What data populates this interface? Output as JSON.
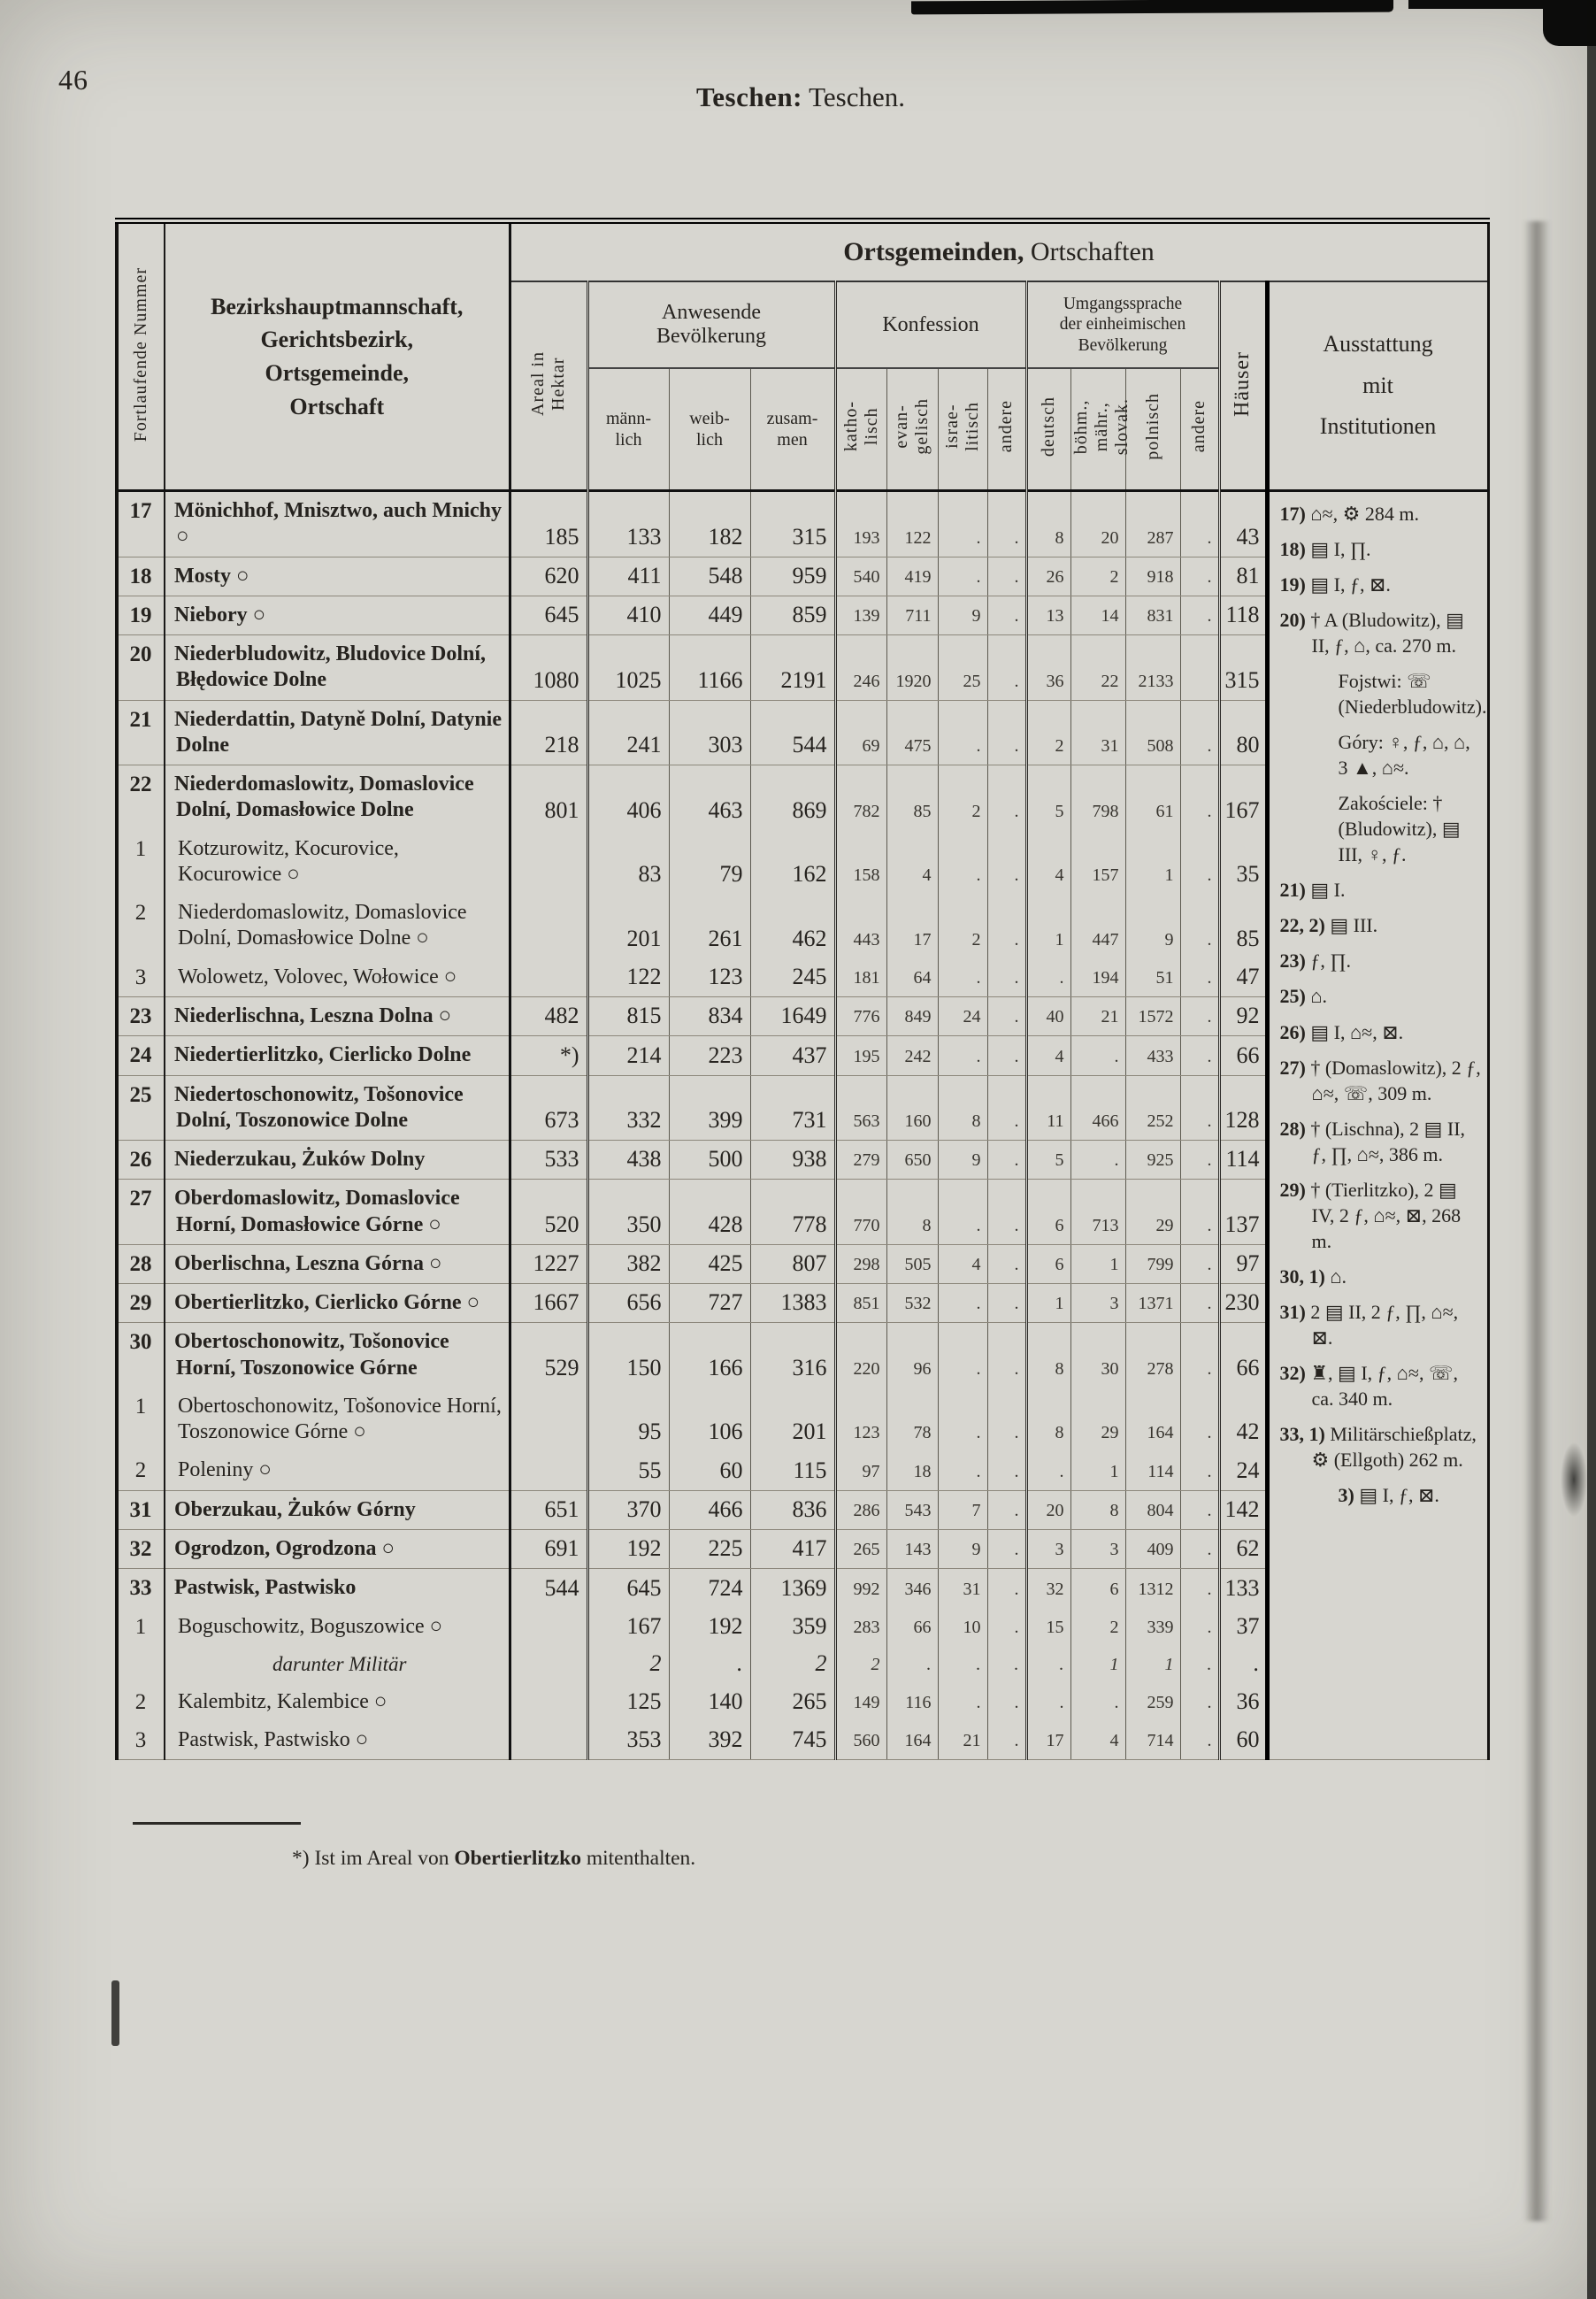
{
  "page": {
    "number": "46",
    "running_title_bold": "Teschen:",
    "running_title_rest": " Teschen.",
    "footnote_pre": "*) Ist im Areal von ",
    "footnote_bold": "Obertierlitzko",
    "footnote_post": " mitenthalten."
  },
  "header": {
    "nr_label": "Fortlaufende Nummer",
    "left_lines": "Bezirkshauptmannschaft,\nGerichtsbezirk,\nOrtsgemeinde,\nOrtschaft",
    "banner_bold": "Ortsgemeinden,",
    "banner_rest": " Ortschaften",
    "areal_label": "Areal in\nHektar",
    "pop_group": "Anwesende\nBevölkerung",
    "pop_cols": [
      "männ-\nlich",
      "weib-\nlich",
      "zusam-\nmen"
    ],
    "konf_group": "Konfession",
    "konf_cols": [
      "katho-\nlisch",
      "evan-\ngelisch",
      "israe-\nlitisch",
      "andere"
    ],
    "lang_group": "Umgangssprache\nder einheimischen\nBevölkerung",
    "lang_cols": [
      "deutsch",
      "böhm.,\nmähr.,\nslovak.",
      "polnisch",
      "andere"
    ],
    "haeuser_label": "Häuser",
    "ausstattung_label": "Ausstattung\nmit\nInstitutionen"
  },
  "rows": [
    {
      "nr": "17",
      "cls": "main",
      "name": "Mönichhof, Mnisztwo, auch Mnichy ○",
      "v": [
        "185",
        "133",
        "182",
        "315",
        "193",
        "122",
        ".",
        ".",
        "8",
        "20",
        "287",
        ".",
        "43"
      ],
      "end": true
    },
    {
      "nr": "18",
      "cls": "main",
      "name": "Mosty ○",
      "v": [
        "620",
        "411",
        "548",
        "959",
        "540",
        "419",
        ".",
        ".",
        "26",
        "2",
        "918",
        ".",
        "81"
      ],
      "end": true
    },
    {
      "nr": "19",
      "cls": "main",
      "name": "Niebory ○",
      "v": [
        "645",
        "410",
        "449",
        "859",
        "139",
        "711",
        "9",
        ".",
        "13",
        "14",
        "831",
        ".",
        "118"
      ],
      "end": true
    },
    {
      "nr": "20",
      "cls": "main",
      "name": "Niederbludowitz, Bludovice Dolní, Błędowice Dolne",
      "v": [
        "1080",
        "1025",
        "1166",
        "2191",
        "246",
        "1920",
        "25",
        ".",
        "36",
        "22",
        "2133",
        "",
        "315"
      ],
      "end": true
    },
    {
      "nr": "21",
      "cls": "main",
      "name": "Niederdattin, Datyně Dolní, Datynie Dolne",
      "v": [
        "218",
        "241",
        "303",
        "544",
        "69",
        "475",
        ".",
        ".",
        "2",
        "31",
        "508",
        ".",
        "80"
      ],
      "end": true
    },
    {
      "nr": "22",
      "cls": "main",
      "name": "Niederdomaslowitz, Domaslovice Dolní, Domasłowice Dolne",
      "v": [
        "801",
        "406",
        "463",
        "869",
        "782",
        "85",
        "2",
        ".",
        "5",
        "798",
        "61",
        ".",
        "167"
      ],
      "end": false
    },
    {
      "nr": "1",
      "cls": "sub",
      "name": "Kotzurowitz, Kocurovice, Kocurowice ○",
      "v": [
        "",
        "83",
        "79",
        "162",
        "158",
        "4",
        ".",
        ".",
        "4",
        "157",
        "1",
        ".",
        "35"
      ],
      "end": false
    },
    {
      "nr": "2",
      "cls": "sub",
      "name": "Niederdomaslowitz, Domaslovice Dolní, Domasłowice Dolne ○",
      "v": [
        "",
        "201",
        "261",
        "462",
        "443",
        "17",
        "2",
        ".",
        "1",
        "447",
        "9",
        ".",
        "85"
      ],
      "end": false
    },
    {
      "nr": "3",
      "cls": "sub",
      "name": "Wolowetz, Volovec, Wołowice ○",
      "v": [
        "",
        "122",
        "123",
        "245",
        "181",
        "64",
        ".",
        ".",
        ".",
        "194",
        "51",
        ".",
        "47"
      ],
      "end": true
    },
    {
      "nr": "23",
      "cls": "main",
      "name": "Niederlischna, Leszna Dolna ○",
      "v": [
        "482",
        "815",
        "834",
        "1649",
        "776",
        "849",
        "24",
        ".",
        "40",
        "21",
        "1572",
        ".",
        "92"
      ],
      "end": true
    },
    {
      "nr": "24",
      "cls": "main",
      "name": "Niedertierlitzko, Cierlicko Dolne",
      "v": [
        "*)",
        "214",
        "223",
        "437",
        "195",
        "242",
        ".",
        ".",
        "4",
        ".",
        "433",
        ".",
        "66"
      ],
      "end": true
    },
    {
      "nr": "25",
      "cls": "main",
      "name": "Niedertoschonowitz, Tošonovice Dolní, Toszonowice Dolne",
      "v": [
        "673",
        "332",
        "399",
        "731",
        "563",
        "160",
        "8",
        ".",
        "11",
        "466",
        "252",
        ".",
        "128"
      ],
      "end": true
    },
    {
      "nr": "26",
      "cls": "main",
      "name": "Niederzukau, Żuków Dolny",
      "v": [
        "533",
        "438",
        "500",
        "938",
        "279",
        "650",
        "9",
        ".",
        "5",
        ".",
        "925",
        ".",
        "114"
      ],
      "end": true
    },
    {
      "nr": "27",
      "cls": "main",
      "name": "Oberdomaslowitz, Domaslovice Horní, Domasłowice Górne ○",
      "v": [
        "520",
        "350",
        "428",
        "778",
        "770",
        "8",
        ".",
        ".",
        "6",
        "713",
        "29",
        ".",
        "137"
      ],
      "end": true
    },
    {
      "nr": "28",
      "cls": "main",
      "name": "Oberlischna, Leszna Górna ○",
      "v": [
        "1227",
        "382",
        "425",
        "807",
        "298",
        "505",
        "4",
        ".",
        "6",
        "1",
        "799",
        ".",
        "97"
      ],
      "end": true
    },
    {
      "nr": "29",
      "cls": "main",
      "name": "Obertierlitzko, Cierlicko Górne ○",
      "v": [
        "1667",
        "656",
        "727",
        "1383",
        "851",
        "532",
        ".",
        ".",
        "1",
        "3",
        "1371",
        ".",
        "230"
      ],
      "end": true
    },
    {
      "nr": "30",
      "cls": "main",
      "name": "Obertoschonowitz, Tošonovice Horní, Toszonowice Górne",
      "v": [
        "529",
        "150",
        "166",
        "316",
        "220",
        "96",
        ".",
        ".",
        "8",
        "30",
        "278",
        ".",
        "66"
      ],
      "end": false
    },
    {
      "nr": "1",
      "cls": "sub",
      "name": "Obertoschonowitz, Tošonovice Horní, Toszonowice Górne ○",
      "v": [
        "",
        "95",
        "106",
        "201",
        "123",
        "78",
        ".",
        ".",
        "8",
        "29",
        "164",
        ".",
        "42"
      ],
      "end": false
    },
    {
      "nr": "2",
      "cls": "sub",
      "name": "Poleniny ○",
      "v": [
        "",
        "55",
        "60",
        "115",
        "97",
        "18",
        ".",
        ".",
        ".",
        "1",
        "114",
        ".",
        "24"
      ],
      "end": true
    },
    {
      "nr": "31",
      "cls": "main",
      "name": "Oberzukau, Żuków Górny",
      "v": [
        "651",
        "370",
        "466",
        "836",
        "286",
        "543",
        "7",
        ".",
        "20",
        "8",
        "804",
        ".",
        "142"
      ],
      "end": true
    },
    {
      "nr": "32",
      "cls": "main",
      "name": "Ogrodzon, Ogrodzona ○",
      "v": [
        "691",
        "192",
        "225",
        "417",
        "265",
        "143",
        "9",
        ".",
        "3",
        "3",
        "409",
        ".",
        "62"
      ],
      "end": true
    },
    {
      "nr": "33",
      "cls": "main",
      "name": "Pastwisk, Pastwisko",
      "v": [
        "544",
        "645",
        "724",
        "1369",
        "992",
        "346",
        "31",
        ".",
        "32",
        "6",
        "1312",
        ".",
        "133"
      ],
      "end": false
    },
    {
      "nr": "1",
      "cls": "sub",
      "name": "Boguschowitz, Boguszowice ○",
      "v": [
        "",
        "167",
        "192",
        "359",
        "283",
        "66",
        "10",
        ".",
        "15",
        "2",
        "339",
        ".",
        "37"
      ],
      "end": false
    },
    {
      "nr": "",
      "cls": "mil",
      "name": "darunter Militär",
      "v": [
        "",
        "2",
        ".",
        "2",
        "2",
        ".",
        ".",
        ".",
        ".",
        "1",
        "1",
        ".",
        "."
      ],
      "end": false
    },
    {
      "nr": "2",
      "cls": "sub",
      "name": "Kalembitz, Kalembice ○",
      "v": [
        "",
        "125",
        "140",
        "265",
        "149",
        "116",
        ".",
        ".",
        ".",
        ".",
        "259",
        ".",
        "36"
      ],
      "end": false
    },
    {
      "nr": "3",
      "cls": "sub",
      "name": "Pastwisk, Pastwisko ○",
      "v": [
        "",
        "353",
        "392",
        "745",
        "560",
        "164",
        "21",
        ".",
        "17",
        "4",
        "714",
        ".",
        "60"
      ],
      "end": true
    }
  ],
  "notes": [
    {
      "n": "17)",
      "t": "⌂≈, ⚙ 284 m.",
      "i": 0
    },
    {
      "n": "18)",
      "t": "▤ I, ∏.",
      "i": 0
    },
    {
      "n": "19)",
      "t": "▤ I, ƒ, ⊠.",
      "i": 0
    },
    {
      "n": "20)",
      "t": "† A (Bludowitz), ▤ II, ƒ, ⌂, ca. 270 m.",
      "i": 0
    },
    {
      "n": "",
      "t": "Fojstwi: ☏ (Niederbludowitz).",
      "i": 1
    },
    {
      "n": "",
      "t": "Góry: ♀, ƒ, ⌂, ⌂, 3 ▲, ⌂≈.",
      "i": 1
    },
    {
      "n": "",
      "t": "Zakościele: † (Bludowitz), ▤ III, ♀, ƒ.",
      "i": 1
    },
    {
      "n": "21)",
      "t": "▤ I.",
      "i": 0
    },
    {
      "n": "22, 2)",
      "t": "▤ III.",
      "i": 0
    },
    {
      "n": "23)",
      "t": "ƒ, ∏.",
      "i": 0
    },
    {
      "n": "25)",
      "t": "⌂.",
      "i": 0
    },
    {
      "n": "26)",
      "t": "▤ I, ⌂≈, ⊠.",
      "i": 0
    },
    {
      "n": "27)",
      "t": "† (Domaslowitz), 2 ƒ, ⌂≈, ☏, 309 m.",
      "i": 0
    },
    {
      "n": "28)",
      "t": "† (Lischna), 2 ▤ II, ƒ, ∏, ⌂≈, 386 m.",
      "i": 0
    },
    {
      "n": "29)",
      "t": "† (Tierlitzko), 2 ▤ IV, 2 ƒ, ⌂≈, ⊠, 268 m.",
      "i": 0
    },
    {
      "n": "30, 1)",
      "t": "⌂.",
      "i": 0
    },
    {
      "n": "31)",
      "t": "2 ▤ II, 2 ƒ, ∏, ⌂≈, ⊠.",
      "i": 0
    },
    {
      "n": "32)",
      "t": "♜, ▤ I, ƒ, ⌂≈, ☏, ca. 340 m.",
      "i": 0
    },
    {
      "n": "33, 1)",
      "t": "Militärschießplatz, ⚙ (Ellgoth) 262 m.",
      "i": 0
    },
    {
      "n": "3)",
      "t": "▤ I, ƒ, ⊠.",
      "i": 1
    }
  ]
}
